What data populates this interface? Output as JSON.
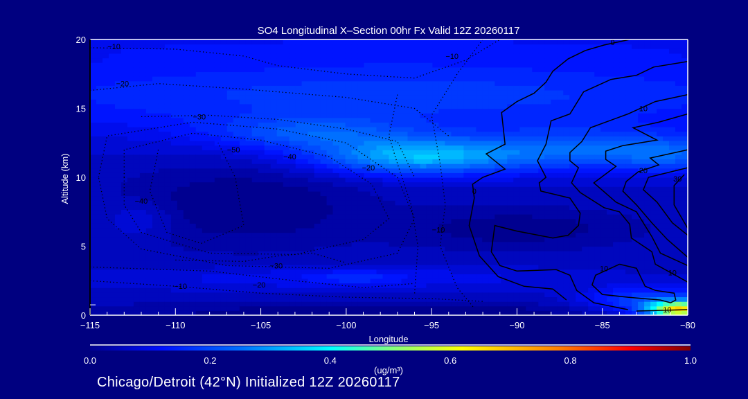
{
  "chart_data": {
    "type": "heatmap",
    "title": "SO4 Longitudinal X–Section 00hr  Fx Valid 12Z 20260117",
    "xlabel": "Longitude",
    "ylabel": "Altitude (km)",
    "xlim": [
      -115,
      -80
    ],
    "ylim": [
      0,
      20
    ],
    "x_ticks": [
      -115,
      -110,
      -105,
      -100,
      -95,
      -90,
      -85,
      -80
    ],
    "x_tick_labels": [
      "−115",
      "−110",
      "−105",
      "−100",
      "−95",
      "−90",
      "−85",
      "−80"
    ],
    "y_ticks": [
      0,
      5,
      10,
      15,
      20
    ],
    "y_tick_labels": [
      "0",
      "5",
      "10",
      "15",
      "20"
    ],
    "colorbar": {
      "range": [
        0.0,
        1.0
      ],
      "tick_labels": [
        "0.0",
        "0.2",
        "0.4",
        "0.6",
        "0.8",
        "1.0"
      ],
      "tick_values": [
        0.0,
        0.2,
        0.4,
        0.6,
        0.8,
        1.0
      ],
      "units": "(ug/m³)",
      "stops": [
        [
          0.0,
          "#000090"
        ],
        [
          0.12,
          "#0010ff"
        ],
        [
          0.25,
          "#0070ff"
        ],
        [
          0.4,
          "#00ffff"
        ],
        [
          0.5,
          "#80ff80"
        ],
        [
          0.62,
          "#ffff00"
        ],
        [
          0.78,
          "#ff8000"
        ],
        [
          0.9,
          "#ff0000"
        ],
        [
          1.0,
          "#800000"
        ]
      ]
    },
    "field": {
      "base": 0.055,
      "blobs": [
        {
          "lon": -97,
          "alt": 16,
          "slon": 30,
          "salt": 3,
          "amp": 0.12
        },
        {
          "lon": -97,
          "alt": 19.5,
          "slon": 30,
          "salt": 1.2,
          "amp": 0.04
        },
        {
          "lon": -96,
          "alt": 11.5,
          "slon": 6,
          "salt": 1.3,
          "amp": 0.25
        },
        {
          "lon": -102,
          "alt": 13.2,
          "slon": 6,
          "salt": 1.2,
          "amp": 0.12
        },
        {
          "lon": -86,
          "alt": 12,
          "slon": 7,
          "salt": 1.5,
          "amp": 0.15
        },
        {
          "lon": -81,
          "alt": 11.5,
          "slon": 3,
          "salt": 1.2,
          "amp": 0.1
        },
        {
          "lon": -106,
          "alt": 8,
          "slon": 7,
          "salt": 3,
          "amp": -0.07
        },
        {
          "lon": -90,
          "alt": 6.3,
          "slon": 7,
          "salt": 1.5,
          "amp": -0.06
        },
        {
          "lon": -112,
          "alt": 7,
          "slon": 2,
          "salt": 1.3,
          "amp": 0.05
        },
        {
          "lon": -100,
          "alt": 2.7,
          "slon": 12,
          "salt": 0.8,
          "amp": 0.06
        },
        {
          "lon": -99.5,
          "alt": 2.8,
          "slon": 2,
          "salt": 0.5,
          "amp": 0.05
        },
        {
          "lon": -80.5,
          "alt": 0.4,
          "slon": 1.8,
          "salt": 0.6,
          "amp": 0.55
        },
        {
          "lon": -82,
          "alt": 1,
          "slon": 4,
          "salt": 1,
          "amp": 0.15
        },
        {
          "lon": -97,
          "alt": 0.2,
          "slon": 20,
          "salt": 0.8,
          "amp": -0.06
        }
      ]
    },
    "contours": [
      {
        "level": 0,
        "points": [
          [
            -83.4,
            20
          ],
          [
            -84.9,
            19.6
          ],
          [
            -86.0,
            19.2
          ],
          [
            -87.0,
            18.6
          ],
          [
            -87.9,
            17.7
          ],
          [
            -88.3,
            16.9
          ],
          [
            -89.0,
            16.1
          ],
          [
            -90.0,
            15.5
          ],
          [
            -90.9,
            14.7
          ],
          [
            -90.7,
            12.4
          ],
          [
            -91.8,
            11.7
          ],
          [
            -90.7,
            10.6
          ],
          [
            -92.0,
            10.0
          ],
          [
            -92.6,
            9.5
          ],
          [
            -92.5,
            8.5
          ],
          [
            -92.8,
            6.5
          ],
          [
            -92.2,
            4.3
          ],
          [
            -91.1,
            2.8
          ],
          [
            -89.6,
            2.1
          ],
          [
            -87.9,
            1.9
          ],
          [
            -87.1,
            1.1
          ]
        ]
      },
      {
        "level": 10,
        "points": [
          [
            -80,
            18.4
          ],
          [
            -82,
            18
          ],
          [
            -83,
            17.4
          ],
          [
            -84.5,
            17.1
          ],
          [
            -86.1,
            16.2
          ],
          [
            -86.9,
            14.6
          ],
          [
            -88,
            14.1
          ],
          [
            -88.3,
            12.4
          ],
          [
            -88.8,
            11.2
          ],
          [
            -88.3,
            10
          ],
          [
            -88.7,
            9.6
          ],
          [
            -88.6,
            9
          ],
          [
            -86.9,
            8.5
          ],
          [
            -86.3,
            7.4
          ],
          [
            -86.4,
            6.5
          ],
          [
            -87,
            5.8
          ],
          [
            -87.9,
            5.6
          ],
          [
            -90,
            6.1
          ],
          [
            -91.3,
            6.5
          ],
          [
            -91.5,
            4.6
          ],
          [
            -91,
            3.6
          ],
          [
            -90,
            3.2
          ],
          [
            -87.7,
            3.3
          ],
          [
            -86.9,
            2.9
          ],
          [
            -86.5,
            1.8
          ],
          [
            -85.5,
            0.9
          ],
          [
            -83.5,
            0.4
          ]
        ]
      },
      {
        "level": 10,
        "points": [
          [
            -80,
            16
          ],
          [
            -81.9,
            15.5
          ],
          [
            -83.5,
            14.6
          ],
          [
            -85.7,
            13.6
          ],
          [
            -86.2,
            12.6
          ],
          [
            -86.9,
            11.8
          ],
          [
            -86.9,
            11.2
          ],
          [
            -86.4,
            10.7
          ],
          [
            -86.8,
            9.6
          ],
          [
            -86.3,
            8.9
          ],
          [
            -84.9,
            7.8
          ],
          [
            -84,
            7.5
          ],
          [
            -83.4,
            6.6
          ],
          [
            -83.3,
            5.6
          ],
          [
            -82.1,
            4.6
          ],
          [
            -81.9,
            3.7
          ],
          [
            -80,
            2.4
          ]
        ]
      },
      {
        "level": 20,
        "points": [
          [
            -80,
            14.6
          ],
          [
            -81.7,
            14
          ],
          [
            -83.2,
            13.6
          ],
          [
            -81.8,
            12.7
          ],
          [
            -83.8,
            12.3
          ],
          [
            -84.8,
            11.9
          ],
          [
            -84.8,
            11.3
          ],
          [
            -84.2,
            10.8
          ],
          [
            -85.5,
            9.6
          ],
          [
            -84.2,
            8.2
          ],
          [
            -83,
            7.5
          ],
          [
            -82.1,
            5.7
          ],
          [
            -81.6,
            4.5
          ],
          [
            -80,
            3.6
          ]
        ]
      },
      {
        "level": 20,
        "points": [
          [
            -80,
            12
          ],
          [
            -82.2,
            11.4
          ],
          [
            -81.7,
            10.9
          ],
          [
            -82.9,
            10.4
          ],
          [
            -83.6,
            9.7
          ],
          [
            -83.8,
            9
          ],
          [
            -83,
            8
          ],
          [
            -82.1,
            6.7
          ],
          [
            -81.2,
            5.5
          ],
          [
            -80,
            4.2
          ]
        ]
      },
      {
        "level": 30,
        "points": [
          [
            -80,
            10.7
          ],
          [
            -82.3,
            10
          ],
          [
            -82.6,
            9.1
          ],
          [
            -81.8,
            8.2
          ],
          [
            -80.9,
            6.7
          ],
          [
            -80,
            5.8
          ]
        ]
      },
      {
        "level": 30,
        "points": [
          [
            -80.2,
            10.2
          ],
          [
            -80.8,
            9.4
          ],
          [
            -80.8,
            8
          ],
          [
            -80,
            6.3
          ]
        ]
      },
      {
        "level": 10,
        "points": [
          [
            -84,
            3.7
          ],
          [
            -83,
            3.4
          ],
          [
            -82.5,
            2.1
          ],
          [
            -81.9,
            1.8
          ],
          [
            -80.8,
            1.6
          ],
          [
            -80.7,
            1.1
          ],
          [
            -81,
            0.9
          ],
          [
            -81.6,
            1.1
          ],
          [
            -83.5,
            1.3
          ],
          [
            -85,
            1.5
          ],
          [
            -85.6,
            2.2
          ],
          [
            -85.4,
            2.9
          ],
          [
            -84,
            3.7
          ]
        ]
      },
      {
        "level": 10,
        "points": [
          [
            -83,
            0.3
          ],
          [
            -81.5,
            0.35
          ],
          [
            -80,
            0.4
          ]
        ]
      },
      {
        "level": -10,
        "points": [
          [
            -115,
            19.4
          ],
          [
            -110,
            19.3
          ],
          [
            -106,
            18.8
          ],
          [
            -104,
            18.1
          ],
          [
            -100,
            17.5
          ],
          [
            -96,
            17.2
          ],
          [
            -93,
            18.5
          ],
          [
            -91,
            20
          ]
        ]
      },
      {
        "level": -20,
        "points": [
          [
            -115,
            16.3
          ],
          [
            -111,
            16.8
          ],
          [
            -106,
            16.4
          ],
          [
            -100,
            15.8
          ],
          [
            -96,
            15
          ],
          [
            -94,
            13
          ]
        ]
      },
      {
        "level": -30,
        "points": [
          [
            -112,
            14.4
          ],
          [
            -108,
            14.5
          ],
          [
            -104,
            14.2
          ],
          [
            -100,
            13.5
          ],
          [
            -97,
            12.6
          ],
          [
            -96,
            10
          ]
        ]
      },
      {
        "level": -50,
        "points": [
          [
            -113,
            10
          ],
          [
            -113,
            12
          ],
          [
            -109,
            13.2
          ],
          [
            -105,
            12.7
          ],
          [
            -101,
            11.5
          ],
          [
            -98.5,
            9.5
          ],
          [
            -97.5,
            7
          ],
          [
            -99,
            5.5
          ],
          [
            -103,
            4.4
          ],
          [
            -108,
            4.5
          ],
          [
            -112,
            6
          ],
          [
            -113,
            8
          ],
          [
            -113,
            10
          ]
        ]
      },
      {
        "level": -40,
        "points": [
          [
            -114.5,
            10
          ],
          [
            -114,
            13
          ],
          [
            -109,
            14
          ],
          [
            -104,
            13.5
          ],
          [
            -100,
            12.5
          ],
          [
            -97,
            10
          ],
          [
            -96,
            7
          ],
          [
            -97,
            4.5
          ],
          [
            -101,
            3.4
          ],
          [
            -107,
            3.6
          ],
          [
            -112,
            4.8
          ],
          [
            -114,
            7
          ],
          [
            -114.5,
            10
          ]
        ]
      },
      {
        "level": -40,
        "points": [
          [
            -111,
            12
          ],
          [
            -111.5,
            9
          ],
          [
            -110.5,
            6
          ],
          [
            -108.5,
            5.2
          ],
          [
            -106,
            6.5
          ],
          [
            -106.5,
            10
          ],
          [
            -107.5,
            12.5
          ]
        ]
      },
      {
        "level": -10,
        "points": [
          [
            -92,
            20
          ],
          [
            -93.5,
            17.5
          ],
          [
            -95,
            14.5
          ],
          [
            -94.5,
            11
          ],
          [
            -94.2,
            8
          ],
          [
            -94.5,
            5
          ],
          [
            -93.5,
            2
          ],
          [
            -92.5,
            0.5
          ]
        ]
      },
      {
        "level": -20,
        "points": [
          [
            -97,
            16
          ],
          [
            -97.5,
            13
          ],
          [
            -97,
            11
          ],
          [
            -96.2,
            8
          ],
          [
            -95.8,
            5
          ],
          [
            -96,
            1.5
          ]
        ]
      },
      {
        "level": -10,
        "points": [
          [
            -115,
            2.5
          ],
          [
            -110,
            2.1
          ],
          [
            -105,
            1.6
          ],
          [
            -100,
            1.3
          ],
          [
            -95,
            1.2
          ],
          [
            -92,
            1.0
          ]
        ]
      },
      {
        "level": -20,
        "points": [
          [
            -115,
            3.5
          ],
          [
            -108,
            3.2
          ],
          [
            -103,
            2.5
          ],
          [
            -99,
            2
          ],
          [
            -96,
            2.3
          ]
        ]
      },
      {
        "level": -30,
        "points": [
          [
            -110,
            4
          ],
          [
            -106,
            3.9
          ],
          [
            -104,
            4.3
          ],
          [
            -102,
            4.5
          ],
          [
            -100,
            3.8
          ]
        ]
      }
    ],
    "contour_labels": [
      {
        "text": "−10",
        "lon": -113.6,
        "alt": 19.5
      },
      {
        "text": "−20",
        "lon": -113.1,
        "alt": 16.8
      },
      {
        "text": "−30",
        "lon": -108.6,
        "alt": 14.4
      },
      {
        "text": "−50",
        "lon": -106.6,
        "alt": 12.0
      },
      {
        "text": "−40",
        "lon": -103.3,
        "alt": 11.5
      },
      {
        "text": "−20",
        "lon": -98.7,
        "alt": 10.7
      },
      {
        "text": "−40",
        "lon": -112.0,
        "alt": 8.3
      },
      {
        "text": "−30",
        "lon": -104.1,
        "alt": 3.6
      },
      {
        "text": "−20",
        "lon": -105.1,
        "alt": 2.2
      },
      {
        "text": "−10",
        "lon": -109.7,
        "alt": 2.1
      },
      {
        "text": "−10",
        "lon": -93.8,
        "alt": 18.8
      },
      {
        "text": "0",
        "lon": -84.4,
        "alt": 19.8
      },
      {
        "text": "0",
        "lon": -92.5,
        "alt": 9.0
      },
      {
        "text": "−10",
        "lon": -94.6,
        "alt": 6.2
      },
      {
        "text": "10",
        "lon": -82.6,
        "alt": 15.0
      },
      {
        "text": "20",
        "lon": -82.6,
        "alt": 10.5
      },
      {
        "text": "30",
        "lon": -80.6,
        "alt": 9.9
      },
      {
        "text": "10",
        "lon": -84.9,
        "alt": 3.4
      },
      {
        "text": "10",
        "lon": -80.9,
        "alt": 3.1
      },
      {
        "text": "10",
        "lon": -81.2,
        "alt": 0.4
      }
    ]
  },
  "caption": "Chicago/Detroit (42°N) Initialized 12Z 20260117"
}
